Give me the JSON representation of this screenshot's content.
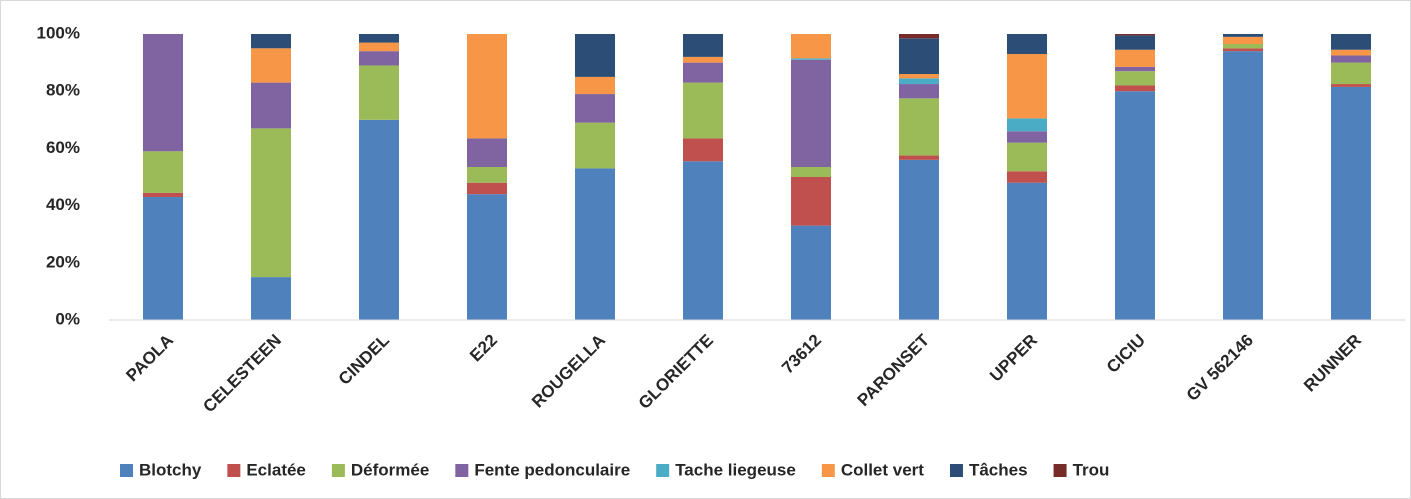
{
  "chart_data": {
    "type": "stacked_bar",
    "categories": [
      "PAOLA",
      "CELESTEEN",
      "CINDEL",
      "E22",
      "ROUGELLA",
      "GLORIETTE",
      "73612",
      "PARONSET",
      "UPPER",
      "CICIU",
      "GV 562146",
      "RUNNER"
    ],
    "series": [
      {
        "name": "Blotchy",
        "color": "#4f81bd",
        "values": [
          43,
          15,
          70,
          44,
          53,
          55.5,
          33,
          56,
          48,
          80,
          94,
          81.5
        ]
      },
      {
        "name": "Eclatée",
        "color": "#c0504d",
        "values": [
          1.5,
          0,
          0,
          4,
          0,
          8,
          17,
          1.5,
          4,
          2,
          1,
          1
        ]
      },
      {
        "name": "Déformée",
        "color": "#9bbb59",
        "values": [
          14.5,
          52,
          19,
          5.5,
          16,
          19.5,
          3.5,
          20,
          10,
          5,
          1.5,
          7.5
        ]
      },
      {
        "name": "Fente pedonculaire",
        "color": "#8064a2",
        "values": [
          41,
          16,
          5,
          10,
          10,
          7,
          37.5,
          5,
          4,
          1.5,
          0,
          2.5
        ]
      },
      {
        "name": "Tache liegeuse",
        "color": "#4bacc6",
        "values": [
          0,
          0,
          0,
          0,
          0,
          0,
          0.5,
          2,
          4.5,
          0,
          0,
          0
        ]
      },
      {
        "name": "Collet vert",
        "color": "#f79646",
        "values": [
          0,
          12,
          3,
          36.5,
          6,
          2,
          8.5,
          1.5,
          22.5,
          6,
          2.5,
          2
        ]
      },
      {
        "name": "Tâches",
        "color": "#2c4d75",
        "values": [
          0,
          5,
          3,
          0,
          15,
          8,
          0,
          12.5,
          7,
          5,
          1,
          5.5
        ]
      },
      {
        "name": "Trou",
        "color": "#772c2a",
        "values": [
          0,
          0,
          0,
          0,
          0,
          0,
          0,
          1.5,
          0,
          0.5,
          0,
          0
        ]
      }
    ],
    "ylim": [
      0,
      100
    ],
    "yticks": [
      {
        "value": 0,
        "label": "0%"
      },
      {
        "value": 20,
        "label": "20%"
      },
      {
        "value": 40,
        "label": "40%"
      },
      {
        "value": 60,
        "label": "60%"
      },
      {
        "value": 80,
        "label": "80%"
      },
      {
        "value": 100,
        "label": "100%"
      }
    ],
    "legend": "bottom"
  }
}
